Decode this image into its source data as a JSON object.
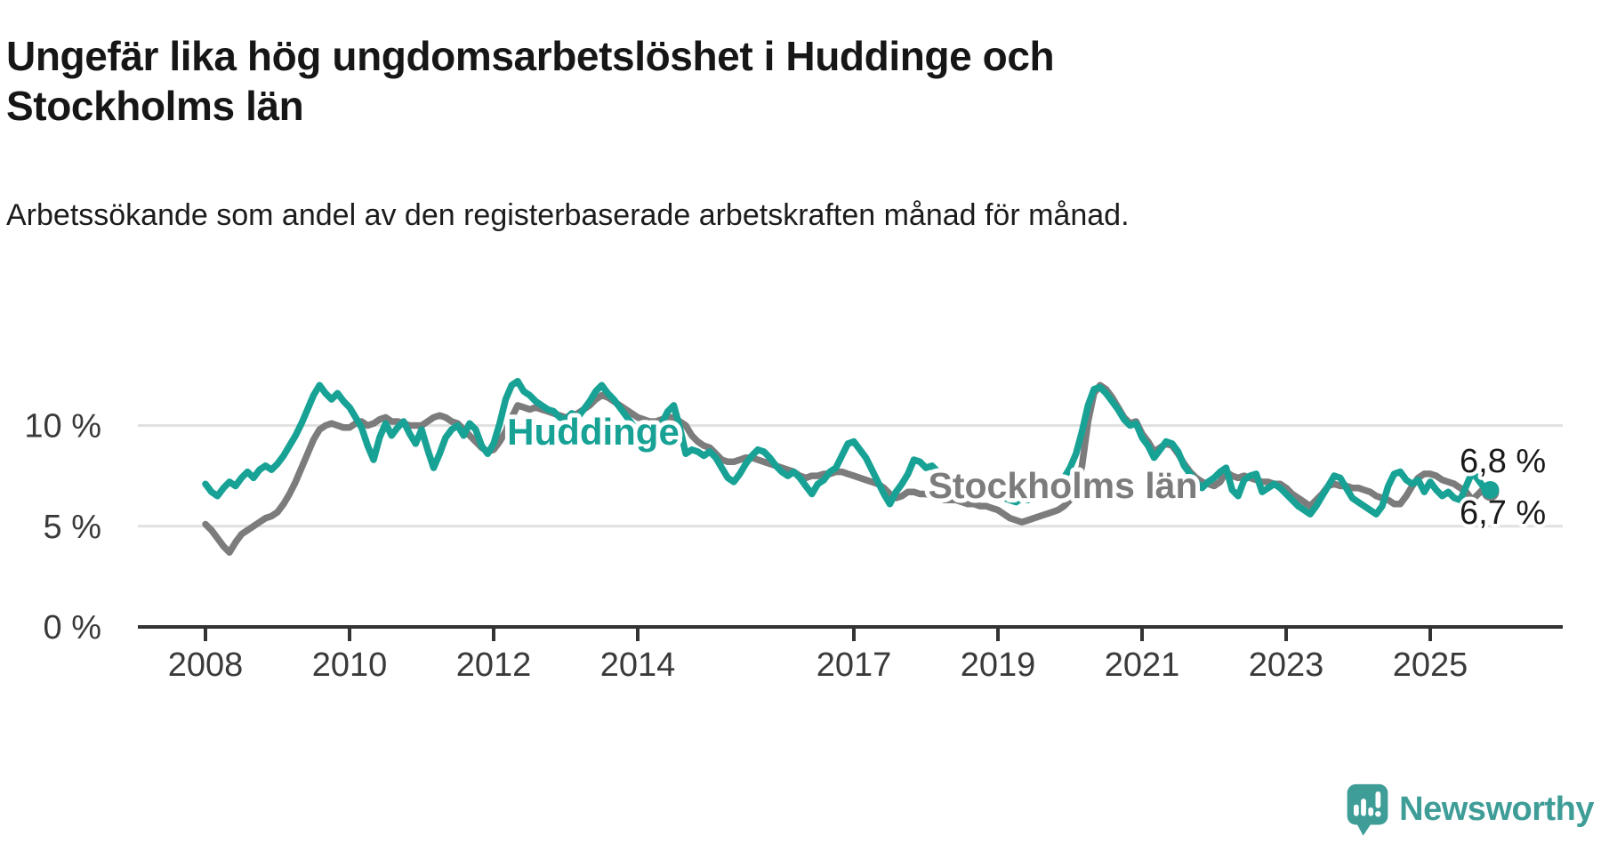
{
  "header": {
    "title": "Ungefär lika hög ungdomsarbetslöshet i Huddinge och Stockholms län",
    "subtitle": "Arbetssökande som andel av den registerbaserade arbetskraften månad för månad."
  },
  "footer": {
    "brand": "Newsworthy",
    "logo_icon": "newsworthy-speech-bubble-chart-icon",
    "logo_color": "#3F9D98"
  },
  "colors": {
    "huddinge": "#17A295",
    "stockholm": "#7C7C7C",
    "grid": "#E1E1E1",
    "axis": "#333333",
    "tick_text": "#3A3A3A",
    "value_label_text": "#1A1A1A"
  },
  "chart_data": {
    "type": "line",
    "title": "Ungefär lika hög ungdomsarbetslöshet i Huddinge och Stockholms län",
    "subtitle": "Arbetssökande som andel av den registerbaserade arbetskraften månad för månad.",
    "unit": "%",
    "decimal_separator": ",",
    "x": {
      "start": "2008-01",
      "end": "2025-11",
      "step_months": 1
    },
    "x_tick_labels": [
      "2008",
      "2010",
      "2012",
      "2014",
      "2017",
      "2019",
      "2021",
      "2023",
      "2025"
    ],
    "y_ticks": [
      0,
      5,
      10
    ],
    "y_tick_labels": [
      "0 %",
      "5 %",
      "10 %"
    ],
    "ylim": [
      0,
      13
    ],
    "grid": "horizontal",
    "legend_position": "inline-labels-on-lines",
    "series": [
      {
        "name": "Huddinge",
        "color": "#17A295",
        "end_label": "6,8 %",
        "end_value": 6.8,
        "values": [
          7.1,
          6.7,
          6.5,
          6.9,
          7.2,
          7.0,
          7.4,
          7.7,
          7.4,
          7.8,
          8.0,
          7.8,
          8.1,
          8.5,
          9.0,
          9.5,
          10.1,
          10.8,
          11.5,
          12.0,
          11.6,
          11.3,
          11.6,
          11.2,
          10.9,
          10.4,
          9.9,
          9.0,
          8.3,
          9.4,
          10.1,
          9.5,
          9.9,
          10.2,
          9.6,
          9.1,
          9.8,
          8.8,
          7.9,
          8.6,
          9.4,
          9.8,
          10.0,
          9.5,
          10.1,
          9.8,
          9.0,
          8.6,
          9.1,
          10.1,
          11.3,
          12.0,
          12.2,
          11.7,
          11.5,
          11.2,
          11.0,
          10.8,
          10.7,
          10.4,
          10.3,
          10.6,
          10.4,
          10.8,
          11.2,
          11.7,
          12.0,
          11.6,
          11.3,
          10.9,
          10.5,
          10.1,
          9.6,
          9.0,
          8.7,
          9.4,
          10.1,
          10.7,
          11.0,
          9.9,
          8.6,
          8.8,
          8.7,
          8.5,
          8.7,
          8.4,
          7.9,
          7.4,
          7.2,
          7.6,
          8.1,
          8.5,
          8.8,
          8.7,
          8.4,
          8.0,
          7.7,
          7.5,
          7.7,
          7.4,
          7.0,
          6.6,
          7.1,
          7.3,
          7.7,
          7.9,
          8.5,
          9.1,
          9.2,
          8.8,
          8.4,
          7.8,
          7.2,
          6.6,
          6.1,
          6.7,
          7.1,
          7.6,
          8.3,
          8.2,
          7.9,
          8.0,
          7.7,
          7.6,
          7.4,
          7.1,
          6.9,
          7.3,
          7.1,
          6.9,
          6.8,
          6.7,
          6.6,
          6.4,
          6.3,
          6.2,
          6.4,
          6.3,
          6.5,
          6.7,
          6.8,
          7.0,
          7.2,
          7.4,
          7.9,
          8.6,
          9.7,
          11.0,
          11.8,
          11.9,
          11.6,
          11.2,
          10.8,
          10.3,
          10.0,
          10.1,
          9.4,
          9.0,
          8.4,
          8.8,
          9.2,
          9.1,
          8.7,
          8.0,
          7.6,
          7.2,
          6.9,
          7.2,
          7.4,
          7.7,
          7.9,
          6.8,
          6.5,
          7.3,
          7.5,
          7.6,
          6.7,
          6.9,
          7.1,
          6.9,
          6.6,
          6.3,
          6.0,
          5.8,
          5.6,
          6.0,
          6.5,
          7.0,
          7.5,
          7.4,
          6.9,
          6.4,
          6.2,
          6.0,
          5.8,
          5.6,
          6.0,
          7.0,
          7.6,
          7.7,
          7.3,
          7.1,
          7.3,
          6.7,
          7.2,
          6.8,
          6.5,
          6.7,
          6.4,
          6.3,
          7.0,
          7.7,
          7.3,
          6.9,
          6.8
        ]
      },
      {
        "name": "Stockholms län",
        "color": "#7C7C7C",
        "end_label": "6,7 %",
        "end_value": 6.7,
        "values": [
          5.1,
          4.8,
          4.4,
          4.0,
          3.7,
          4.2,
          4.6,
          4.8,
          5.0,
          5.2,
          5.4,
          5.5,
          5.7,
          6.1,
          6.6,
          7.2,
          7.9,
          8.6,
          9.3,
          9.8,
          10.0,
          10.1,
          10.0,
          9.9,
          9.9,
          10.1,
          10.2,
          10.0,
          10.1,
          10.3,
          10.4,
          10.2,
          10.2,
          10.1,
          10.0,
          10.0,
          10.0,
          10.2,
          10.4,
          10.5,
          10.4,
          10.2,
          10.1,
          9.8,
          9.5,
          9.2,
          8.9,
          8.7,
          8.8,
          9.2,
          9.7,
          10.4,
          11.0,
          10.9,
          10.8,
          10.9,
          10.8,
          10.7,
          10.6,
          10.5,
          10.4,
          10.5,
          10.6,
          10.8,
          11.0,
          11.3,
          11.5,
          11.4,
          11.2,
          11.0,
          10.8,
          10.6,
          10.4,
          10.3,
          10.2,
          10.2,
          10.3,
          10.4,
          10.4,
          10.2,
          10.0,
          9.5,
          9.2,
          9.0,
          8.9,
          8.6,
          8.3,
          8.2,
          8.2,
          8.3,
          8.4,
          8.4,
          8.3,
          8.2,
          8.1,
          8.0,
          7.9,
          7.8,
          7.7,
          7.5,
          7.4,
          7.5,
          7.5,
          7.6,
          7.6,
          7.7,
          7.7,
          7.6,
          7.5,
          7.4,
          7.3,
          7.2,
          7.1,
          6.9,
          6.6,
          6.4,
          6.5,
          6.7,
          6.7,
          6.6,
          6.6,
          6.5,
          6.4,
          6.3,
          6.3,
          6.3,
          6.2,
          6.1,
          6.1,
          6.0,
          6.0,
          5.9,
          5.8,
          5.6,
          5.4,
          5.3,
          5.2,
          5.3,
          5.4,
          5.5,
          5.6,
          5.7,
          5.8,
          6.0,
          6.3,
          6.8,
          8.0,
          10.2,
          11.6,
          12.0,
          11.8,
          11.4,
          10.9,
          10.4,
          10.1,
          10.2,
          9.6,
          9.2,
          8.7,
          8.9,
          9.1,
          9.0,
          8.6,
          8.1,
          7.7,
          7.4,
          7.2,
          7.1,
          7.0,
          7.2,
          7.7,
          7.5,
          7.4,
          7.5,
          7.4,
          7.3,
          7.2,
          7.2,
          7.1,
          7.1,
          6.9,
          6.6,
          6.4,
          6.2,
          6.0,
          6.3,
          6.6,
          7.0,
          7.1,
          7.0,
          7.0,
          6.9,
          6.9,
          6.8,
          6.7,
          6.5,
          6.4,
          6.3,
          6.1,
          6.1,
          6.5,
          7.0,
          7.4,
          7.6,
          7.6,
          7.5,
          7.3,
          7.2,
          7.1,
          6.9,
          6.7,
          6.3,
          6.6,
          6.9,
          6.7
        ]
      }
    ]
  }
}
